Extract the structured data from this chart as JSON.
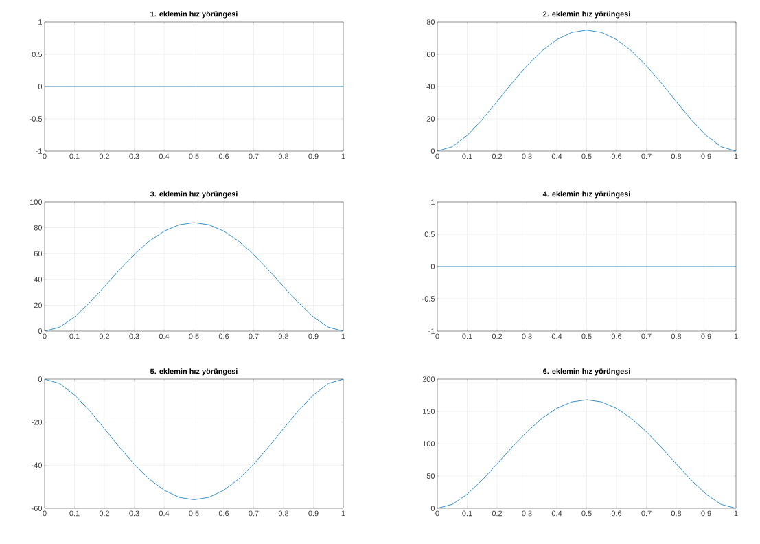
{
  "chart_data": [
    {
      "type": "line",
      "title": "1. eklemin hız yörüngesi",
      "x": [
        0,
        0.05,
        0.1,
        0.15,
        0.2,
        0.25,
        0.3,
        0.35,
        0.4,
        0.45,
        0.5,
        0.55,
        0.6,
        0.65,
        0.7,
        0.75,
        0.8,
        0.85,
        0.9,
        0.95,
        1
      ],
      "values": [
        0,
        0,
        0,
        0,
        0,
        0,
        0,
        0,
        0,
        0,
        0,
        0,
        0,
        0,
        0,
        0,
        0,
        0,
        0,
        0,
        0
      ],
      "color": "#0072bd",
      "xlim": [
        0,
        1
      ],
      "ylim": [
        -1,
        1
      ],
      "xticks": [
        0,
        0.1,
        0.2,
        0.3,
        0.4,
        0.5,
        0.6,
        0.7,
        0.8,
        0.9,
        1
      ],
      "yticks": [
        -1,
        -0.5,
        0,
        0.5,
        1
      ],
      "grid": true
    },
    {
      "type": "line",
      "title": "2. eklemin hız yörüngesi",
      "x": [
        0,
        0.05,
        0.1,
        0.15,
        0.2,
        0.25,
        0.3,
        0.35,
        0.4,
        0.45,
        0.5,
        0.55,
        0.6,
        0.65,
        0.7,
        0.75,
        0.8,
        0.85,
        0.9,
        0.95,
        1
      ],
      "values": [
        0,
        2.7,
        9.7,
        19.5,
        30.7,
        42.2,
        52.9,
        62.1,
        69.1,
        73.5,
        75,
        73.5,
        69.1,
        62.1,
        52.9,
        42.2,
        30.7,
        19.5,
        9.7,
        2.7,
        0
      ],
      "color": "#0072bd",
      "xlim": [
        0,
        1
      ],
      "ylim": [
        0,
        80
      ],
      "xticks": [
        0,
        0.1,
        0.2,
        0.3,
        0.4,
        0.5,
        0.6,
        0.7,
        0.8,
        0.9,
        1
      ],
      "yticks": [
        0,
        20,
        40,
        60,
        80
      ],
      "grid": true
    },
    {
      "type": "line",
      "title": "3. eklemin hız yörüngesi",
      "x": [
        0,
        0.05,
        0.1,
        0.15,
        0.2,
        0.25,
        0.3,
        0.35,
        0.4,
        0.45,
        0.5,
        0.55,
        0.6,
        0.65,
        0.7,
        0.75,
        0.8,
        0.85,
        0.9,
        0.95,
        1
      ],
      "values": [
        0,
        3.0,
        10.9,
        21.8,
        34.4,
        47.3,
        59.3,
        69.6,
        77.4,
        82.3,
        84,
        82.3,
        77.4,
        69.6,
        59.3,
        47.3,
        34.4,
        21.8,
        10.9,
        3.0,
        0
      ],
      "color": "#0072bd",
      "xlim": [
        0,
        1
      ],
      "ylim": [
        0,
        100
      ],
      "xticks": [
        0,
        0.1,
        0.2,
        0.3,
        0.4,
        0.5,
        0.6,
        0.7,
        0.8,
        0.9,
        1
      ],
      "yticks": [
        0,
        20,
        40,
        60,
        80,
        100
      ],
      "grid": true
    },
    {
      "type": "line",
      "title": "4. eklemin hız yörüngesi",
      "x": [
        0,
        0.05,
        0.1,
        0.15,
        0.2,
        0.25,
        0.3,
        0.35,
        0.4,
        0.45,
        0.5,
        0.55,
        0.6,
        0.65,
        0.7,
        0.75,
        0.8,
        0.85,
        0.9,
        0.95,
        1
      ],
      "values": [
        0,
        0,
        0,
        0,
        0,
        0,
        0,
        0,
        0,
        0,
        0,
        0,
        0,
        0,
        0,
        0,
        0,
        0,
        0,
        0,
        0
      ],
      "color": "#0072bd",
      "xlim": [
        0,
        1
      ],
      "ylim": [
        -1,
        1
      ],
      "xticks": [
        0,
        0.1,
        0.2,
        0.3,
        0.4,
        0.5,
        0.6,
        0.7,
        0.8,
        0.9,
        1
      ],
      "yticks": [
        -1,
        -0.5,
        0,
        0.5,
        1
      ],
      "grid": true
    },
    {
      "type": "line",
      "title": "5. eklemin hız yörüngesi",
      "x": [
        0,
        0.05,
        0.1,
        0.15,
        0.2,
        0.25,
        0.3,
        0.35,
        0.4,
        0.45,
        0.5,
        0.55,
        0.6,
        0.65,
        0.7,
        0.75,
        0.8,
        0.85,
        0.9,
        0.95,
        1
      ],
      "values": [
        0,
        -2.0,
        -7.3,
        -14.6,
        -23.0,
        -31.5,
        -39.5,
        -46.4,
        -51.6,
        -54.9,
        -56,
        -54.9,
        -51.6,
        -46.4,
        -39.5,
        -31.5,
        -23.0,
        -14.6,
        -7.3,
        -2.0,
        0
      ],
      "color": "#0072bd",
      "xlim": [
        0,
        1
      ],
      "ylim": [
        -60,
        0
      ],
      "xticks": [
        0,
        0.1,
        0.2,
        0.3,
        0.4,
        0.5,
        0.6,
        0.7,
        0.8,
        0.9,
        1
      ],
      "yticks": [
        -60,
        -40,
        -20,
        0
      ],
      "grid": true
    },
    {
      "type": "line",
      "title": "6. eklemin hız yörüngesi",
      "x": [
        0,
        0.05,
        0.1,
        0.15,
        0.2,
        0.25,
        0.3,
        0.35,
        0.4,
        0.45,
        0.5,
        0.55,
        0.6,
        0.65,
        0.7,
        0.75,
        0.8,
        0.85,
        0.9,
        0.95,
        1
      ],
      "values": [
        0,
        6.1,
        21.8,
        43.7,
        68.8,
        94.5,
        118.5,
        139.1,
        154.8,
        164.7,
        168,
        164.7,
        154.8,
        139.1,
        118.5,
        94.5,
        68.8,
        43.7,
        21.8,
        6.1,
        0
      ],
      "color": "#0072bd",
      "xlim": [
        0,
        1
      ],
      "ylim": [
        0,
        200
      ],
      "xticks": [
        0,
        0.1,
        0.2,
        0.3,
        0.4,
        0.5,
        0.6,
        0.7,
        0.8,
        0.9,
        1
      ],
      "yticks": [
        0,
        50,
        100,
        150,
        200
      ],
      "grid": true
    }
  ]
}
